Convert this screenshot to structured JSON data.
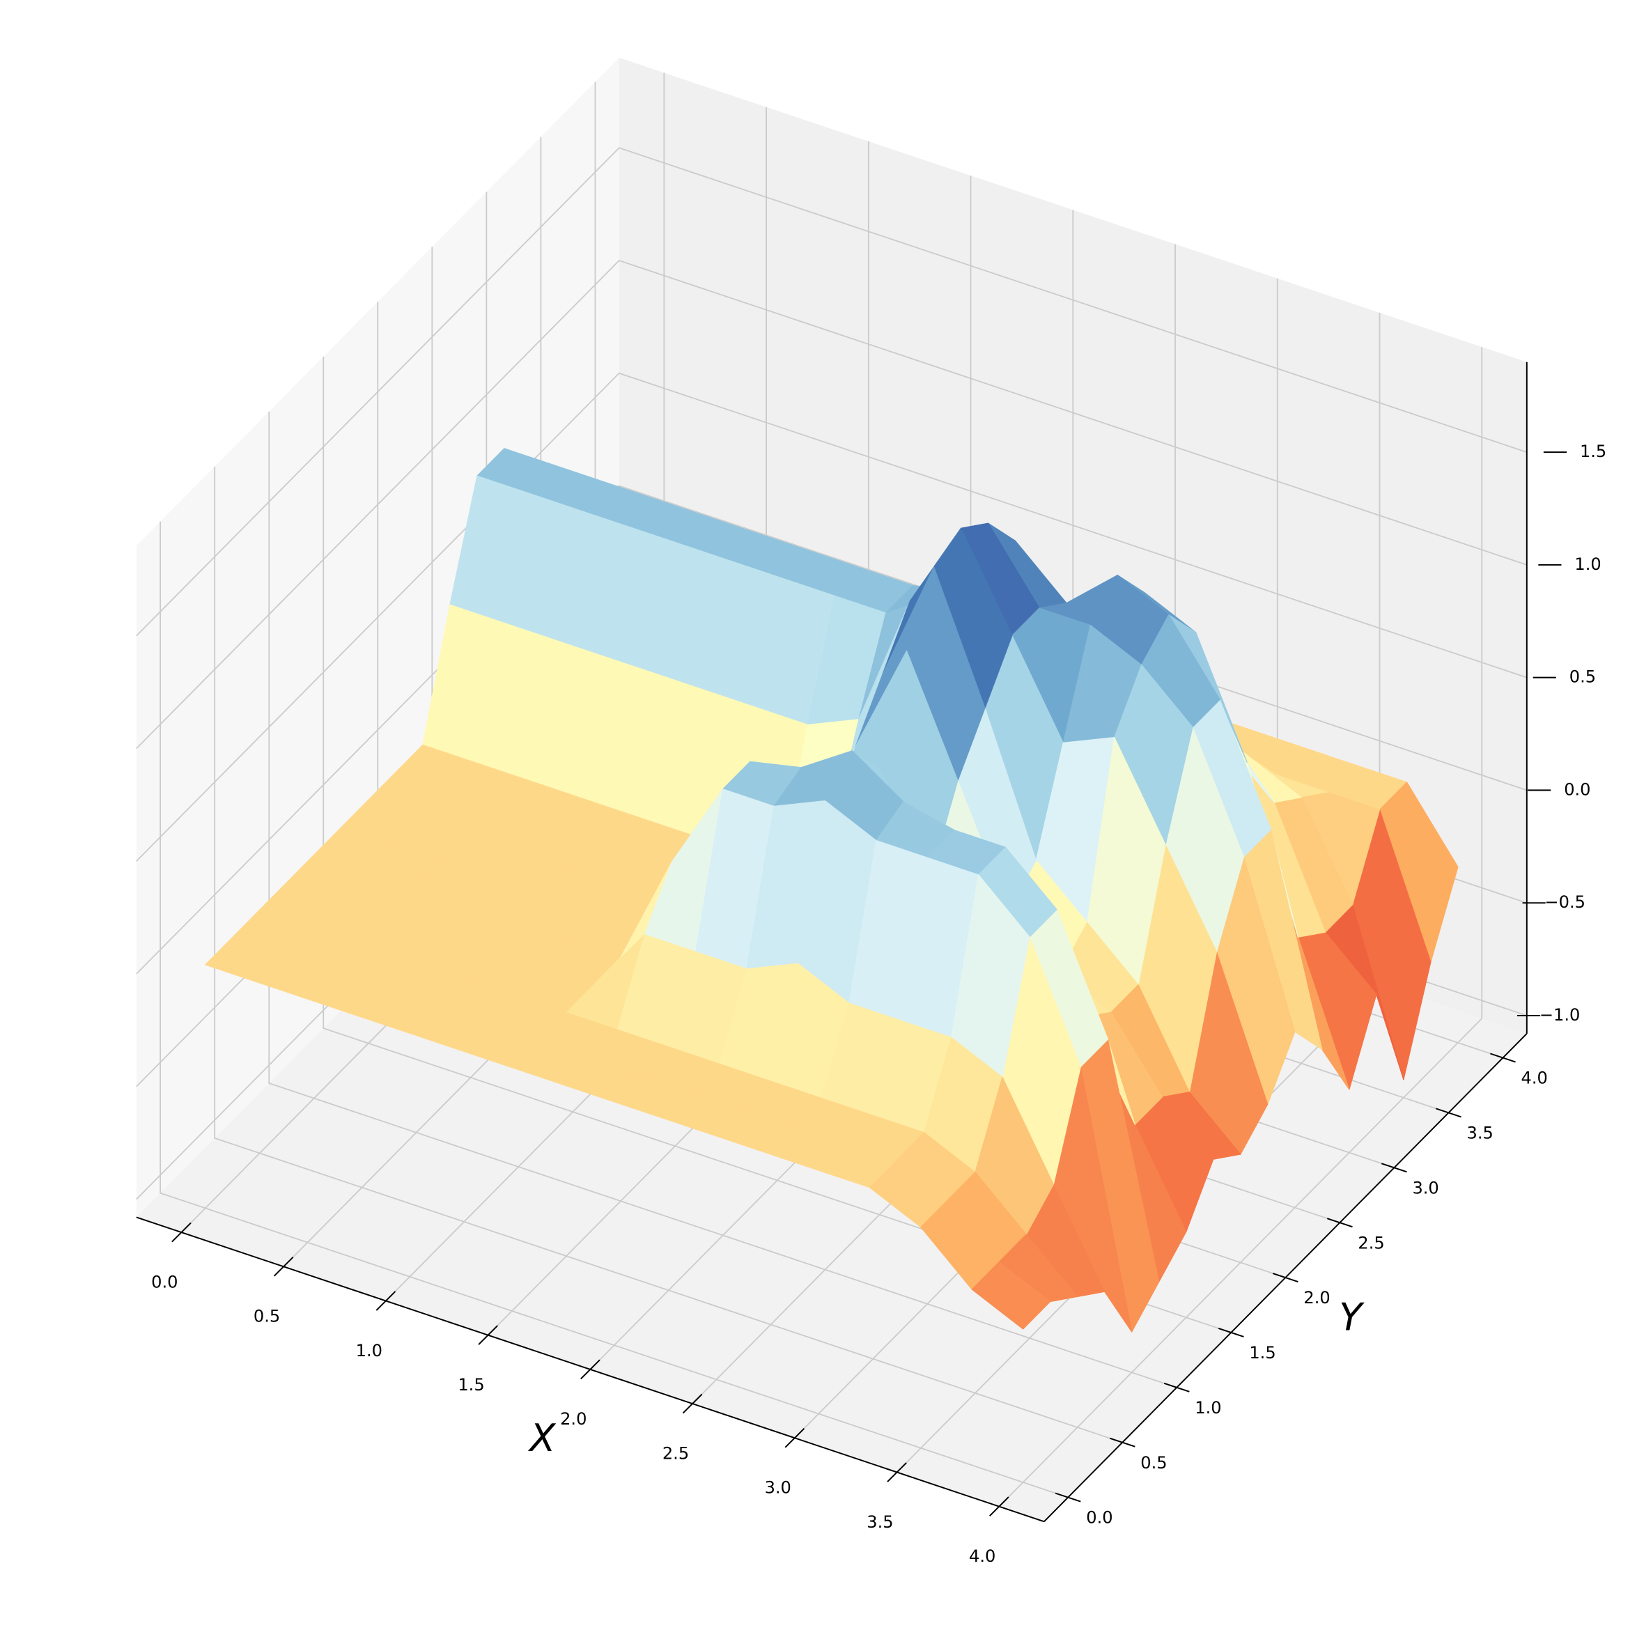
{
  "chart_data": {
    "type": "surface",
    "xlabel": "X",
    "ylabel": "Y",
    "colormap": "RdYlBu",
    "grid": true,
    "x": [
      0,
      0.25,
      0.5,
      0.75,
      1,
      1.25,
      1.5,
      1.75,
      2,
      2.25,
      2.5,
      2.75,
      3,
      3.25,
      3.5,
      3.75,
      4
    ],
    "y": [
      0,
      0.25,
      0.5,
      0.75,
      1,
      1.25,
      1.5,
      1.75,
      2,
      2.25,
      2.5,
      2.75,
      3,
      3.25,
      3.5,
      3.75,
      4
    ],
    "z": [
      [
        0,
        0,
        0,
        0,
        0,
        0,
        0,
        0,
        0,
        0,
        0,
        0,
        0,
        0,
        -0.1,
        -0.3,
        -0.4
      ],
      [
        0,
        0,
        0,
        0,
        0,
        0,
        0,
        0,
        0,
        0,
        0,
        0,
        0,
        0,
        -0.1,
        -0.3,
        -0.4
      ],
      [
        0,
        0,
        0,
        0,
        0,
        0,
        0,
        0,
        0,
        0,
        0,
        0,
        0,
        0,
        -0.1,
        -0.3,
        -0.5
      ],
      [
        0,
        0,
        0,
        0,
        0,
        0,
        0,
        0.3,
        0.3,
        0.3,
        0.4,
        0.3,
        0.3,
        0.3,
        0.2,
        -0.2,
        -0.6
      ],
      [
        0,
        0,
        0,
        0,
        0,
        0,
        0,
        0.5,
        0.9,
        0.9,
        1.0,
        0.9,
        0.9,
        0.9,
        0.7,
        0.2,
        -0.9
      ],
      [
        0,
        0,
        0,
        0,
        0,
        0,
        0,
        0.5,
        0.9,
        0.95,
        1.1,
        0.95,
        0.9,
        0.9,
        0.7,
        0.2,
        -0.8
      ],
      [
        0,
        0,
        0,
        0,
        0,
        0,
        0,
        0.2,
        0.2,
        0.5,
        0.9,
        0.5,
        0.3,
        0.2,
        0.1,
        -0.3,
        -0.7
      ],
      [
        0,
        0,
        0,
        0,
        0,
        0,
        0,
        0,
        0.1,
        0.8,
        1.3,
        0.8,
        0.3,
        0.1,
        0,
        -0.3,
        -0.5
      ],
      [
        0,
        0,
        0,
        0,
        0,
        0,
        0,
        0,
        0.2,
        1.0,
        1.55,
        1.0,
        0.4,
        0.2,
        0,
        -0.4,
        -0.6
      ],
      [
        0.5,
        0.5,
        0.5,
        0.5,
        0.5,
        0.5,
        0.5,
        0.5,
        0.6,
        1.2,
        1.6,
        1.2,
        0.8,
        0.9,
        0.5,
        0.1,
        -0.5
      ],
      [
        0.95,
        0.95,
        0.95,
        0.95,
        0.95,
        0.95,
        0.95,
        0.95,
        0.95,
        1.1,
        1.5,
        1.2,
        1.2,
        1.1,
        0.9,
        0.4,
        -0.3
      ],
      [
        0.95,
        0.95,
        0.95,
        0.95,
        0.95,
        0.95,
        0.95,
        0.95,
        0.95,
        1.0,
        1.3,
        1.1,
        1.3,
        1.2,
        0.9,
        0.4,
        -0.5
      ],
      [
        0.3,
        0.3,
        0.3,
        0.3,
        0.3,
        0.3,
        0.3,
        0.3,
        0.3,
        0.4,
        0.8,
        0.7,
        1.1,
        1.0,
        0.5,
        -0.2,
        -0.8
      ],
      [
        0.2,
        0.2,
        0.2,
        0.2,
        0.2,
        0.2,
        0.2,
        0.2,
        0.2,
        0.2,
        0.4,
        0.3,
        0.6,
        0.4,
        0.2,
        -0.3,
        -0.5
      ],
      [
        0.2,
        0.2,
        0.2,
        0.2,
        0.2,
        0.2,
        0.2,
        0.2,
        0.2,
        0.2,
        0.3,
        0.2,
        0.3,
        0.2,
        0.1,
        -0.3,
        -1.0
      ],
      [
        0,
        0,
        0,
        0,
        0,
        0,
        0,
        0,
        0,
        0,
        0,
        0,
        0,
        0,
        0,
        0,
        -0.6
      ],
      [
        0,
        0,
        0,
        0,
        0,
        0,
        0,
        0,
        0,
        0,
        0,
        0,
        0,
        0,
        0,
        0,
        -0.3
      ]
    ],
    "xlim": [
      -0.22,
      4.22
    ],
    "ylim": [
      -0.22,
      4.22
    ],
    "zlim": [
      -1.08,
      1.9
    ],
    "xticks": [
      {
        "value": 0,
        "label": "0.0"
      },
      {
        "value": 0.5,
        "label": "0.5"
      },
      {
        "value": 1,
        "label": "1.0"
      },
      {
        "value": 1.5,
        "label": "1.5"
      },
      {
        "value": 2,
        "label": "2.0"
      },
      {
        "value": 2.5,
        "label": "2.5"
      },
      {
        "value": 3,
        "label": "3.0"
      },
      {
        "value": 3.5,
        "label": "3.5"
      },
      {
        "value": 4,
        "label": "4.0"
      }
    ],
    "yticks": [
      {
        "value": 0,
        "label": "0.0"
      },
      {
        "value": 0.5,
        "label": "0.5"
      },
      {
        "value": 1,
        "label": "1.0"
      },
      {
        "value": 1.5,
        "label": "1.5"
      },
      {
        "value": 2,
        "label": "2.0"
      },
      {
        "value": 2.5,
        "label": "2.5"
      },
      {
        "value": 3,
        "label": "3.0"
      },
      {
        "value": 3.5,
        "label": "3.5"
      },
      {
        "value": 4,
        "label": "4.0"
      }
    ],
    "zticks": [
      {
        "value": -1,
        "label": "−1.0"
      },
      {
        "value": -0.5,
        "label": "−0.5"
      },
      {
        "value": 0,
        "label": "0.0"
      },
      {
        "value": 0.5,
        "label": "0.5"
      },
      {
        "value": 1,
        "label": "1.0"
      },
      {
        "value": 1.5,
        "label": "1.5"
      }
    ]
  }
}
